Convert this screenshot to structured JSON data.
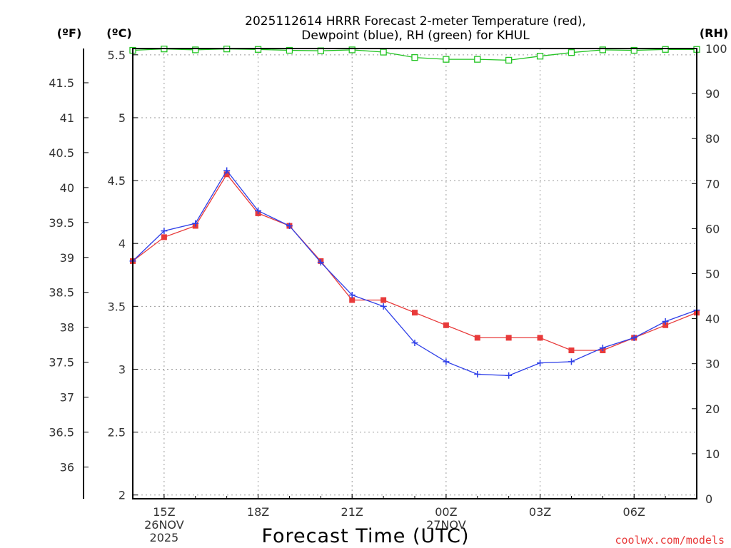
{
  "chart_data": {
    "type": "line",
    "title_lines": [
      "2025112614 HRRR Forecast 2-meter Temperature (red),",
      "Dewpoint (blue), RH (green) for KHUL"
    ],
    "xlabel": "Forecast Time (UTC)",
    "credit": "coolwx.com/models",
    "axis_units": {
      "fahrenheit": "(ºF)",
      "celsius": "(ºC)",
      "rh": "(RH)"
    },
    "x": [
      14,
      15,
      16,
      17,
      18,
      19,
      20,
      21,
      22,
      23,
      24,
      25,
      26,
      27,
      28,
      29,
      30,
      31,
      32
    ],
    "xlim": [
      14,
      32
    ],
    "x_ticks": [
      {
        "x": 15,
        "lines": [
          "15Z",
          "26NOV",
          "2025"
        ]
      },
      {
        "x": 18,
        "lines": [
          "18Z"
        ]
      },
      {
        "x": 21,
        "lines": [
          "21Z"
        ]
      },
      {
        "x": 24,
        "lines": [
          "00Z",
          "27NOV"
        ]
      },
      {
        "x": 27,
        "lines": [
          "03Z"
        ]
      },
      {
        "x": 30,
        "lines": [
          "06Z"
        ]
      }
    ],
    "celsius_axis": {
      "range": [
        1.97,
        5.55
      ],
      "ticks": [
        "2",
        "2.5",
        "3",
        "3.5",
        "4",
        "4.5",
        "5",
        "5.5"
      ]
    },
    "fahrenheit_axis": {
      "ticks": [
        "36",
        "36.5",
        "37",
        "37.5",
        "38",
        "38.5",
        "39",
        "39.5",
        "40",
        "40.5",
        "41",
        "41.5"
      ]
    },
    "rh_axis": {
      "range": [
        0,
        100
      ],
      "ticks": [
        "0",
        "10",
        "20",
        "30",
        "40",
        "50",
        "60",
        "70",
        "80",
        "90",
        "100"
      ]
    },
    "grid": true,
    "series": [
      {
        "name": "Temperature",
        "axis": "celsius",
        "color": "#e83a3a",
        "marker": "square-filled",
        "values": [
          3.86,
          4.05,
          4.14,
          4.55,
          4.24,
          4.14,
          3.86,
          3.55,
          3.55,
          3.45,
          3.35,
          3.25,
          3.25,
          3.25,
          3.15,
          3.15,
          3.25,
          3.35,
          3.45
        ]
      },
      {
        "name": "Dewpoint",
        "axis": "celsius",
        "color": "#2e3fe8",
        "marker": "plus",
        "values": [
          3.86,
          4.1,
          4.16,
          4.58,
          4.26,
          4.14,
          3.85,
          3.59,
          3.5,
          3.21,
          3.06,
          2.96,
          2.95,
          3.05,
          3.06,
          3.17,
          3.25,
          3.38,
          3.47
        ]
      },
      {
        "name": "RH",
        "axis": "rh",
        "color": "#22c422",
        "marker": "square-open",
        "values": [
          99.6,
          99.9,
          99.7,
          99.9,
          99.8,
          99.6,
          99.5,
          99.7,
          99.2,
          98.0,
          97.6,
          97.6,
          97.4,
          98.3,
          99.1,
          99.7,
          99.6,
          99.8,
          99.8
        ]
      }
    ]
  }
}
